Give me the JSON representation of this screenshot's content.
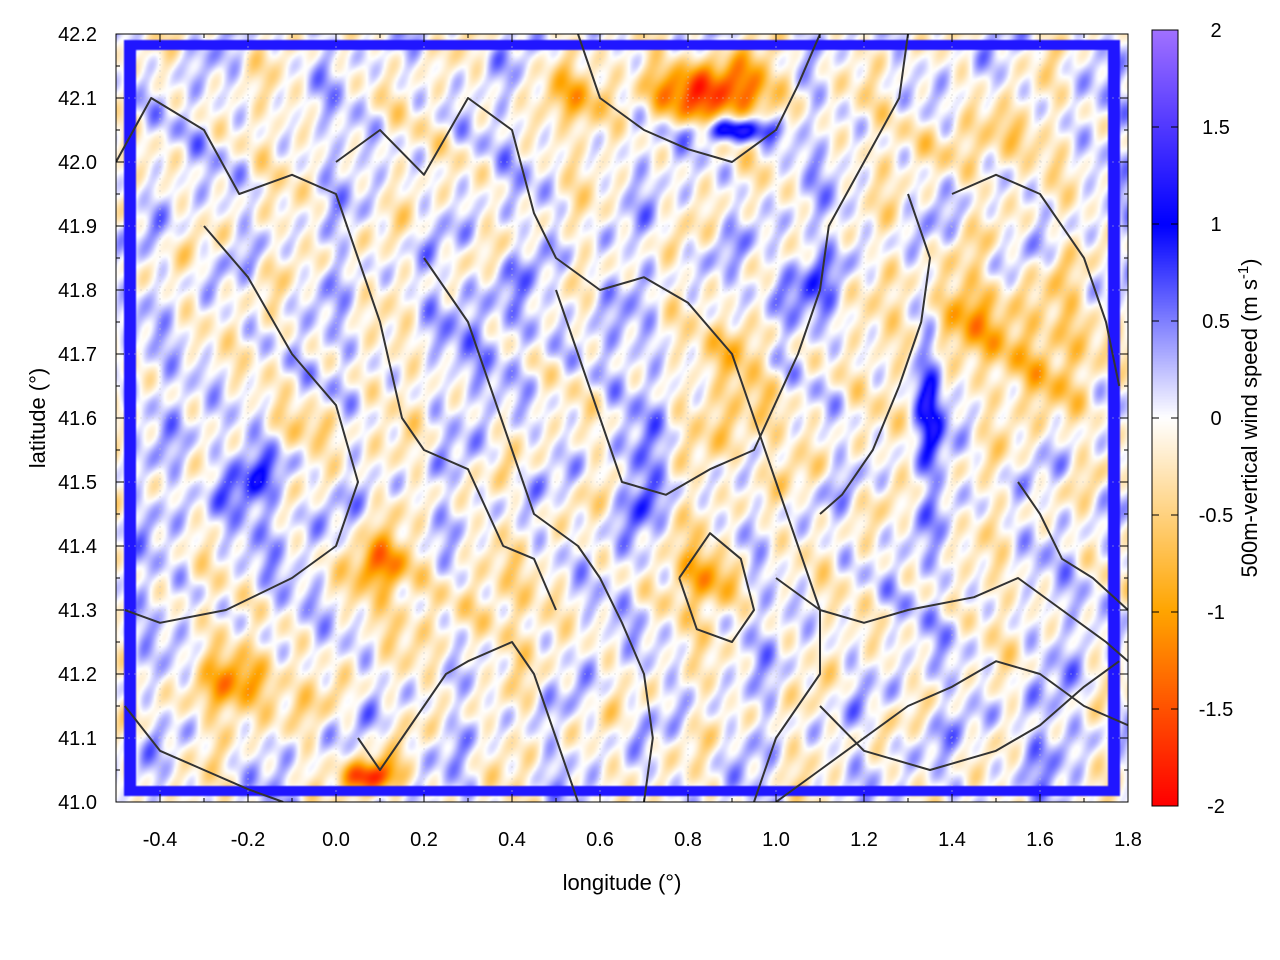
{
  "chart_data": {
    "type": "heatmap",
    "xlabel": "longitude (°)",
    "ylabel": "latitude (°)",
    "colorbar_label": "500m-vertical wind speed (m s",
    "colorbar_label_sup": "-1",
    "colorbar_label_end": ")",
    "xlim": [
      -0.5,
      1.8
    ],
    "ylim": [
      41.0,
      42.2
    ],
    "zlim": [
      -2,
      2
    ],
    "xticks": [
      {
        "value": -0.4,
        "label": "-0.4"
      },
      {
        "value": -0.2,
        "label": "-0.2"
      },
      {
        "value": 0.0,
        "label": "0.0"
      },
      {
        "value": 0.2,
        "label": "0.2"
      },
      {
        "value": 0.4,
        "label": "0.4"
      },
      {
        "value": 0.6,
        "label": "0.6"
      },
      {
        "value": 0.8,
        "label": "0.8"
      },
      {
        "value": 1.0,
        "label": "1.0"
      },
      {
        "value": 1.2,
        "label": "1.2"
      },
      {
        "value": 1.4,
        "label": "1.4"
      },
      {
        "value": 1.6,
        "label": "1.6"
      },
      {
        "value": 1.8,
        "label": "1.8"
      }
    ],
    "yticks": [
      {
        "value": 41.0,
        "label": "41.0"
      },
      {
        "value": 41.1,
        "label": "41.1"
      },
      {
        "value": 41.2,
        "label": "41.2"
      },
      {
        "value": 41.3,
        "label": "41.3"
      },
      {
        "value": 41.4,
        "label": "41.4"
      },
      {
        "value": 41.5,
        "label": "41.5"
      },
      {
        "value": 41.6,
        "label": "41.6"
      },
      {
        "value": 41.7,
        "label": "41.7"
      },
      {
        "value": 41.8,
        "label": "41.8"
      },
      {
        "value": 41.9,
        "label": "41.9"
      },
      {
        "value": 42.0,
        "label": "42.0"
      },
      {
        "value": 42.1,
        "label": "42.1"
      },
      {
        "value": 42.2,
        "label": "42.2"
      }
    ],
    "zticks": [
      {
        "value": 2,
        "label": "2"
      },
      {
        "value": 1.5,
        "label": "1.5"
      },
      {
        "value": 1,
        "label": "1"
      },
      {
        "value": 0.5,
        "label": "0.5"
      },
      {
        "value": 0,
        "label": "0"
      },
      {
        "value": -0.5,
        "label": "-0.5"
      },
      {
        "value": -1,
        "label": "-1"
      },
      {
        "value": -1.5,
        "label": "-1.5"
      },
      {
        "value": -2,
        "label": "-2"
      }
    ],
    "colormap": [
      {
        "value": -2.0,
        "color": "#ff0000"
      },
      {
        "value": -1.0,
        "color": "#ffa500"
      },
      {
        "value": 0.0,
        "color": "#ffffff"
      },
      {
        "value": 1.0,
        "color": "#0000ff"
      },
      {
        "value": 2.0,
        "color": "#a070ff"
      }
    ],
    "grid": true,
    "contours": true,
    "contour_color": "#333333",
    "legend": "colorbar-right",
    "features": [
      {
        "lon": 0.08,
        "lat": 41.04,
        "value": -1.9,
        "sx": 0.06,
        "sy": 0.025
      },
      {
        "lon": 0.85,
        "lat": 42.11,
        "value": -1.6,
        "sx": 0.15,
        "sy": 0.05
      },
      {
        "lon": 0.9,
        "lat": 42.05,
        "value": 1.6,
        "sx": 0.09,
        "sy": 0.02
      },
      {
        "lon": 0.92,
        "lat": 41.72,
        "value": -0.8,
        "sx": 0.06,
        "sy": 0.04
      },
      {
        "lon": 0.95,
        "lat": 41.6,
        "value": -0.5,
        "sx": 0.1,
        "sy": 0.1
      },
      {
        "lon": 1.4,
        "lat": 41.75,
        "value": -0.9,
        "sx": 0.12,
        "sy": 0.08
      },
      {
        "lon": 1.65,
        "lat": 41.7,
        "value": -0.7,
        "sx": 0.12,
        "sy": 0.1
      },
      {
        "lon": 1.45,
        "lat": 42.03,
        "value": -0.6,
        "sx": 0.12,
        "sy": 0.05
      },
      {
        "lon": 0.1,
        "lat": 41.37,
        "value": -1.2,
        "sx": 0.07,
        "sy": 0.04
      },
      {
        "lon": -0.2,
        "lat": 41.18,
        "value": -1.0,
        "sx": 0.12,
        "sy": 0.05
      },
      {
        "lon": -0.05,
        "lat": 41.58,
        "value": -0.6,
        "sx": 0.1,
        "sy": 0.04
      },
      {
        "lon": -0.2,
        "lat": 41.5,
        "value": 0.5,
        "sx": 0.12,
        "sy": 0.1
      },
      {
        "lon": 0.85,
        "lat": 41.35,
        "value": -0.9,
        "sx": 0.08,
        "sy": 0.05
      },
      {
        "lon": 1.35,
        "lat": 41.65,
        "value": 1.0,
        "sx": 0.03,
        "sy": 0.14
      },
      {
        "lon": 1.6,
        "lat": 41.1,
        "value": 0.15,
        "sx": 0.2,
        "sy": 0.1
      },
      {
        "lon": 0.3,
        "lat": 41.3,
        "value": -0.4,
        "sx": 0.15,
        "sy": 0.08
      },
      {
        "lon": 0.55,
        "lat": 42.1,
        "value": -0.6,
        "sx": 0.1,
        "sy": 0.04
      },
      {
        "lon": 0.7,
        "lat": 41.5,
        "value": 0.6,
        "sx": 0.04,
        "sy": 0.08
      },
      {
        "lon": 1.05,
        "lat": 41.8,
        "value": 0.4,
        "sx": 0.12,
        "sy": 0.08
      },
      {
        "lon": 0.4,
        "lat": 41.75,
        "value": 0.25,
        "sx": 0.2,
        "sy": 0.1
      }
    ],
    "contour_lines": [
      [
        [
          -0.5,
          42.0
        ],
        [
          -0.42,
          42.1
        ],
        [
          -0.3,
          42.05
        ],
        [
          -0.22,
          41.95
        ],
        [
          -0.1,
          41.98
        ],
        [
          0.0,
          41.95
        ],
        [
          0.05,
          41.85
        ],
        [
          0.1,
          41.75
        ],
        [
          0.15,
          41.6
        ],
        [
          0.2,
          41.55
        ],
        [
          0.3,
          41.52
        ],
        [
          0.38,
          41.4
        ],
        [
          0.45,
          41.38
        ],
        [
          0.5,
          41.3
        ]
      ],
      [
        [
          -0.3,
          41.9
        ],
        [
          -0.2,
          41.82
        ],
        [
          -0.1,
          41.7
        ],
        [
          0.0,
          41.62
        ],
        [
          0.05,
          41.5
        ],
        [
          0.0,
          41.4
        ],
        [
          -0.1,
          41.35
        ],
        [
          -0.25,
          41.3
        ],
        [
          -0.4,
          41.28
        ],
        [
          -0.48,
          41.3
        ]
      ],
      [
        [
          -0.48,
          41.15
        ],
        [
          -0.4,
          41.08
        ],
        [
          -0.3,
          41.05
        ],
        [
          -0.2,
          41.02
        ],
        [
          -0.12,
          41.0
        ]
      ],
      [
        [
          0.0,
          42.0
        ],
        [
          0.1,
          42.05
        ],
        [
          0.2,
          41.98
        ],
        [
          0.3,
          42.1
        ],
        [
          0.4,
          42.05
        ],
        [
          0.45,
          41.92
        ],
        [
          0.5,
          41.85
        ],
        [
          0.6,
          41.8
        ],
        [
          0.7,
          41.82
        ],
        [
          0.8,
          41.78
        ],
        [
          0.9,
          41.7
        ],
        [
          0.95,
          41.6
        ],
        [
          1.0,
          41.5
        ],
        [
          1.05,
          41.4
        ],
        [
          1.1,
          41.3
        ],
        [
          1.1,
          41.2
        ],
        [
          1.0,
          41.1
        ],
        [
          0.95,
          41.0
        ]
      ],
      [
        [
          0.2,
          41.85
        ],
        [
          0.3,
          41.75
        ],
        [
          0.35,
          41.65
        ],
        [
          0.4,
          41.55
        ],
        [
          0.45,
          41.45
        ],
        [
          0.55,
          41.4
        ],
        [
          0.6,
          41.35
        ],
        [
          0.65,
          41.28
        ],
        [
          0.7,
          41.2
        ],
        [
          0.72,
          41.1
        ],
        [
          0.7,
          41.0
        ]
      ],
      [
        [
          0.5,
          41.8
        ],
        [
          0.55,
          41.7
        ],
        [
          0.6,
          41.6
        ],
        [
          0.65,
          41.5
        ],
        [
          0.75,
          41.48
        ],
        [
          0.85,
          41.52
        ],
        [
          0.95,
          41.55
        ],
        [
          1.05,
          41.7
        ],
        [
          1.1,
          41.8
        ],
        [
          1.12,
          41.9
        ],
        [
          1.2,
          42.0
        ],
        [
          1.28,
          42.1
        ],
        [
          1.3,
          42.2
        ]
      ],
      [
        [
          1.3,
          41.95
        ],
        [
          1.35,
          41.85
        ],
        [
          1.33,
          41.75
        ],
        [
          1.28,
          41.65
        ],
        [
          1.22,
          41.55
        ],
        [
          1.15,
          41.48
        ],
        [
          1.1,
          41.45
        ]
      ],
      [
        [
          1.4,
          41.95
        ],
        [
          1.5,
          41.98
        ],
        [
          1.6,
          41.95
        ],
        [
          1.7,
          41.85
        ],
        [
          1.75,
          41.75
        ],
        [
          1.78,
          41.65
        ]
      ],
      [
        [
          1.55,
          41.5
        ],
        [
          1.6,
          41.45
        ],
        [
          1.65,
          41.38
        ],
        [
          1.72,
          41.35
        ],
        [
          1.8,
          41.3
        ]
      ],
      [
        [
          1.0,
          41.35
        ],
        [
          1.1,
          41.3
        ],
        [
          1.2,
          41.28
        ],
        [
          1.3,
          41.3
        ],
        [
          1.45,
          41.32
        ],
        [
          1.55,
          41.35
        ],
        [
          1.65,
          41.3
        ],
        [
          1.75,
          41.25
        ],
        [
          1.8,
          41.22
        ]
      ],
      [
        [
          1.1,
          41.15
        ],
        [
          1.2,
          41.08
        ],
        [
          1.35,
          41.05
        ],
        [
          1.5,
          41.08
        ],
        [
          1.6,
          41.12
        ],
        [
          1.7,
          41.18
        ],
        [
          1.78,
          41.22
        ]
      ],
      [
        [
          0.55,
          42.2
        ],
        [
          0.6,
          42.1
        ],
        [
          0.7,
          42.05
        ],
        [
          0.8,
          42.02
        ],
        [
          0.9,
          42.0
        ],
        [
          1.0,
          42.05
        ],
        [
          1.05,
          42.12
        ],
        [
          1.1,
          42.2
        ]
      ],
      [
        [
          0.05,
          41.1
        ],
        [
          0.1,
          41.05
        ],
        [
          0.15,
          41.1
        ],
        [
          0.2,
          41.15
        ],
        [
          0.25,
          41.2
        ],
        [
          0.3,
          41.22
        ],
        [
          0.4,
          41.25
        ],
        [
          0.45,
          41.2
        ],
        [
          0.5,
          41.1
        ],
        [
          0.55,
          41.0
        ]
      ],
      [
        [
          0.78,
          41.35
        ],
        [
          0.85,
          41.42
        ],
        [
          0.92,
          41.38
        ],
        [
          0.95,
          41.3
        ],
        [
          0.9,
          41.25
        ],
        [
          0.82,
          41.27
        ],
        [
          0.78,
          41.35
        ]
      ],
      [
        [
          1.0,
          41.0
        ],
        [
          1.1,
          41.05
        ],
        [
          1.2,
          41.1
        ],
        [
          1.3,
          41.15
        ],
        [
          1.4,
          41.18
        ],
        [
          1.5,
          41.22
        ],
        [
          1.6,
          41.2
        ],
        [
          1.7,
          41.15
        ],
        [
          1.8,
          41.12
        ]
      ]
    ]
  }
}
